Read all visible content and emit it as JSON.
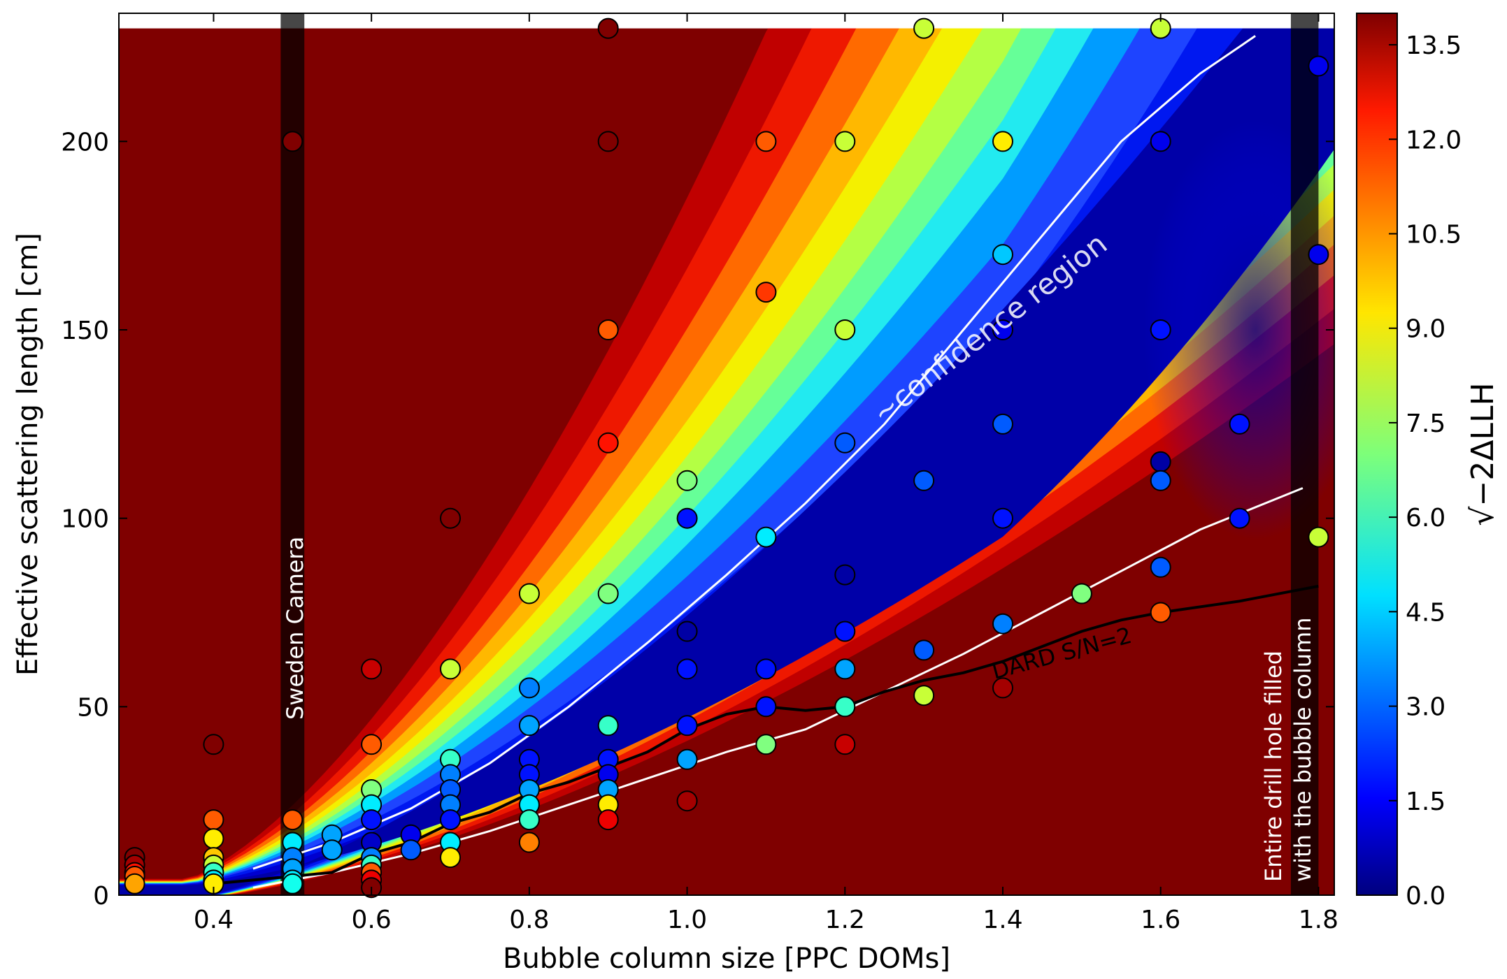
{
  "chart_data": {
    "type": "heatmap",
    "xlabel": "Bubble column size [PPC DOMs]",
    "ylabel": "Effective scattering length [cm]",
    "xlim": [
      0.28,
      1.82
    ],
    "ylim": [
      0,
      234
    ],
    "x_ticks": [
      "0.4",
      "0.6",
      "0.8",
      "1.0",
      "1.2",
      "1.4",
      "1.6",
      "1.8"
    ],
    "y_ticks": [
      "0",
      "50",
      "100",
      "150",
      "200"
    ],
    "colorbar": {
      "label": "√−2ΔLLH",
      "range": [
        0,
        14
      ],
      "ticks": [
        "0.0",
        "1.5",
        "3.0",
        "4.5",
        "6.0",
        "7.5",
        "9.0",
        "10.5",
        "12.0",
        "13.5"
      ],
      "colormap": "jet"
    },
    "annotations": {
      "confidence": "~confidence region",
      "dard": "DARD S/N=2",
      "sweden": "Sweden Camera",
      "drill_line1": "Entire drill hole filled",
      "drill_line2": "with the bubble column"
    },
    "bands": [
      {
        "x_from": 0.485,
        "x_to": 0.515
      },
      {
        "x_from": 1.765,
        "x_to": 1.8
      }
    ],
    "dard_curve": [
      [
        0.4,
        3
      ],
      [
        0.45,
        4
      ],
      [
        0.5,
        5
      ],
      [
        0.55,
        6
      ],
      [
        0.6,
        11
      ],
      [
        0.65,
        14
      ],
      [
        0.7,
        19
      ],
      [
        0.75,
        22
      ],
      [
        0.8,
        27
      ],
      [
        0.85,
        30
      ],
      [
        0.9,
        34
      ],
      [
        0.95,
        38
      ],
      [
        1.0,
        44
      ],
      [
        1.05,
        48
      ],
      [
        1.1,
        50
      ],
      [
        1.15,
        49
      ],
      [
        1.2,
        50
      ],
      [
        1.25,
        54
      ],
      [
        1.3,
        57
      ],
      [
        1.35,
        59
      ],
      [
        1.4,
        62
      ],
      [
        1.45,
        66
      ],
      [
        1.5,
        70
      ],
      [
        1.55,
        73
      ],
      [
        1.6,
        75
      ],
      [
        1.7,
        78
      ],
      [
        1.8,
        82
      ]
    ],
    "confidence_upper": [
      [
        0.45,
        7
      ],
      [
        0.55,
        14
      ],
      [
        0.65,
        23
      ],
      [
        0.75,
        35
      ],
      [
        0.85,
        50
      ],
      [
        0.95,
        67
      ],
      [
        1.05,
        85
      ],
      [
        1.15,
        104
      ],
      [
        1.25,
        125
      ],
      [
        1.35,
        150
      ],
      [
        1.45,
        175
      ],
      [
        1.55,
        200
      ],
      [
        1.65,
        218
      ],
      [
        1.72,
        228
      ]
    ],
    "confidence_lower": [
      [
        0.45,
        2
      ],
      [
        0.55,
        6
      ],
      [
        0.65,
        11
      ],
      [
        0.75,
        17
      ],
      [
        0.85,
        24
      ],
      [
        0.95,
        31
      ],
      [
        1.05,
        38
      ],
      [
        1.15,
        44
      ],
      [
        1.25,
        54
      ],
      [
        1.35,
        64
      ],
      [
        1.45,
        75
      ],
      [
        1.55,
        86
      ],
      [
        1.65,
        97
      ],
      [
        1.78,
        108
      ]
    ],
    "points": [
      {
        "x": 0.3,
        "y": 10,
        "v": 14
      },
      {
        "x": 0.3,
        "y": 8,
        "v": 13.5
      },
      {
        "x": 0.3,
        "y": 6,
        "v": 12
      },
      {
        "x": 0.3,
        "y": 5,
        "v": 11
      },
      {
        "x": 0.3,
        "y": 3,
        "v": 10
      },
      {
        "x": 0.4,
        "y": 40,
        "v": 14
      },
      {
        "x": 0.4,
        "y": 20,
        "v": 11
      },
      {
        "x": 0.4,
        "y": 15,
        "v": 9
      },
      {
        "x": 0.4,
        "y": 10,
        "v": 9.5
      },
      {
        "x": 0.4,
        "y": 8,
        "v": 8
      },
      {
        "x": 0.4,
        "y": 6,
        "v": 6
      },
      {
        "x": 0.4,
        "y": 4,
        "v": 5
      },
      {
        "x": 0.4,
        "y": 3,
        "v": 9
      },
      {
        "x": 0.5,
        "y": 200,
        "v": 14
      },
      {
        "x": 0.5,
        "y": 20,
        "v": 11
      },
      {
        "x": 0.5,
        "y": 14,
        "v": 5
      },
      {
        "x": 0.5,
        "y": 10,
        "v": 3.5
      },
      {
        "x": 0.5,
        "y": 7,
        "v": 4
      },
      {
        "x": 0.5,
        "y": 4,
        "v": 5
      },
      {
        "x": 0.5,
        "y": 3,
        "v": 5.5
      },
      {
        "x": 0.55,
        "y": 16,
        "v": 4
      },
      {
        "x": 0.55,
        "y": 12,
        "v": 4
      },
      {
        "x": 0.6,
        "y": 60,
        "v": 13
      },
      {
        "x": 0.6,
        "y": 40,
        "v": 11
      },
      {
        "x": 0.6,
        "y": 28,
        "v": 7
      },
      {
        "x": 0.6,
        "y": 24,
        "v": 5
      },
      {
        "x": 0.6,
        "y": 20,
        "v": 2
      },
      {
        "x": 0.6,
        "y": 14,
        "v": 1
      },
      {
        "x": 0.6,
        "y": 10,
        "v": 3.5
      },
      {
        "x": 0.6,
        "y": 8,
        "v": 6
      },
      {
        "x": 0.6,
        "y": 6,
        "v": 11
      },
      {
        "x": 0.6,
        "y": 4,
        "v": 12.5
      },
      {
        "x": 0.6,
        "y": 2,
        "v": 14
      },
      {
        "x": 0.65,
        "y": 16,
        "v": 1.5
      },
      {
        "x": 0.65,
        "y": 12,
        "v": 3
      },
      {
        "x": 0.7,
        "y": 100,
        "v": 14
      },
      {
        "x": 0.7,
        "y": 60,
        "v": 8
      },
      {
        "x": 0.7,
        "y": 36,
        "v": 6
      },
      {
        "x": 0.7,
        "y": 32,
        "v": 3.5
      },
      {
        "x": 0.7,
        "y": 28,
        "v": 3
      },
      {
        "x": 0.7,
        "y": 24,
        "v": 3.5
      },
      {
        "x": 0.7,
        "y": 20,
        "v": 2
      },
      {
        "x": 0.7,
        "y": 14,
        "v": 5
      },
      {
        "x": 0.7,
        "y": 10,
        "v": 9
      },
      {
        "x": 0.8,
        "y": 80,
        "v": 8
      },
      {
        "x": 0.8,
        "y": 55,
        "v": 3.5
      },
      {
        "x": 0.8,
        "y": 45,
        "v": 4
      },
      {
        "x": 0.8,
        "y": 36,
        "v": 2
      },
      {
        "x": 0.8,
        "y": 32,
        "v": 2
      },
      {
        "x": 0.8,
        "y": 28,
        "v": 4
      },
      {
        "x": 0.8,
        "y": 24,
        "v": 5
      },
      {
        "x": 0.8,
        "y": 20,
        "v": 6
      },
      {
        "x": 0.8,
        "y": 14,
        "v": 10.5
      },
      {
        "x": 0.9,
        "y": 230,
        "v": 14
      },
      {
        "x": 0.9,
        "y": 200,
        "v": 14
      },
      {
        "x": 0.9,
        "y": 150,
        "v": 11
      },
      {
        "x": 0.9,
        "y": 120,
        "v": 12
      },
      {
        "x": 0.9,
        "y": 80,
        "v": 7
      },
      {
        "x": 0.9,
        "y": 45,
        "v": 6
      },
      {
        "x": 0.9,
        "y": 36,
        "v": 2
      },
      {
        "x": 0.9,
        "y": 32,
        "v": 1.5
      },
      {
        "x": 0.9,
        "y": 28,
        "v": 4
      },
      {
        "x": 0.9,
        "y": 24,
        "v": 9
      },
      {
        "x": 0.9,
        "y": 20,
        "v": 12.5
      },
      {
        "x": 1.0,
        "y": 110,
        "v": 7
      },
      {
        "x": 1.0,
        "y": 100,
        "v": 2
      },
      {
        "x": 1.0,
        "y": 70,
        "v": 0.5
      },
      {
        "x": 1.0,
        "y": 60,
        "v": 2
      },
      {
        "x": 1.0,
        "y": 45,
        "v": 2
      },
      {
        "x": 1.0,
        "y": 36,
        "v": 4
      },
      {
        "x": 1.0,
        "y": 25,
        "v": 13.5
      },
      {
        "x": 1.1,
        "y": 200,
        "v": 11
      },
      {
        "x": 1.1,
        "y": 160,
        "v": 11.5
      },
      {
        "x": 1.1,
        "y": 95,
        "v": 5
      },
      {
        "x": 1.1,
        "y": 60,
        "v": 2
      },
      {
        "x": 1.1,
        "y": 50,
        "v": 2
      },
      {
        "x": 1.1,
        "y": 40,
        "v": 7
      },
      {
        "x": 1.2,
        "y": 200,
        "v": 8
      },
      {
        "x": 1.2,
        "y": 150,
        "v": 8
      },
      {
        "x": 1.2,
        "y": 120,
        "v": 3
      },
      {
        "x": 1.2,
        "y": 85,
        "v": 0.5
      },
      {
        "x": 1.2,
        "y": 70,
        "v": 2
      },
      {
        "x": 1.2,
        "y": 60,
        "v": 4
      },
      {
        "x": 1.2,
        "y": 50,
        "v": 6
      },
      {
        "x": 1.2,
        "y": 40,
        "v": 13
      },
      {
        "x": 1.3,
        "y": 230,
        "v": 8
      },
      {
        "x": 1.3,
        "y": 110,
        "v": 3
      },
      {
        "x": 1.3,
        "y": 65,
        "v": 3
      },
      {
        "x": 1.3,
        "y": 53,
        "v": 8
      },
      {
        "x": 1.4,
        "y": 200,
        "v": 9
      },
      {
        "x": 1.4,
        "y": 170,
        "v": 4.5
      },
      {
        "x": 1.4,
        "y": 150,
        "v": 1.5
      },
      {
        "x": 1.4,
        "y": 125,
        "v": 3
      },
      {
        "x": 1.4,
        "y": 100,
        "v": 2
      },
      {
        "x": 1.4,
        "y": 72,
        "v": 3.5
      },
      {
        "x": 1.4,
        "y": 55,
        "v": 13.5
      },
      {
        "x": 1.5,
        "y": 80,
        "v": 7
      },
      {
        "x": 1.6,
        "y": 230,
        "v": 8
      },
      {
        "x": 1.6,
        "y": 200,
        "v": 1.5
      },
      {
        "x": 1.6,
        "y": 150,
        "v": 2
      },
      {
        "x": 1.6,
        "y": 115,
        "v": 0.5
      },
      {
        "x": 1.6,
        "y": 110,
        "v": 3
      },
      {
        "x": 1.6,
        "y": 87,
        "v": 3
      },
      {
        "x": 1.6,
        "y": 75,
        "v": 11
      },
      {
        "x": 1.7,
        "y": 125,
        "v": 2
      },
      {
        "x": 1.7,
        "y": 100,
        "v": 2
      },
      {
        "x": 1.8,
        "y": 220,
        "v": 1.5
      },
      {
        "x": 1.8,
        "y": 170,
        "v": 1.5
      },
      {
        "x": 1.8,
        "y": 95,
        "v": 8
      }
    ]
  }
}
